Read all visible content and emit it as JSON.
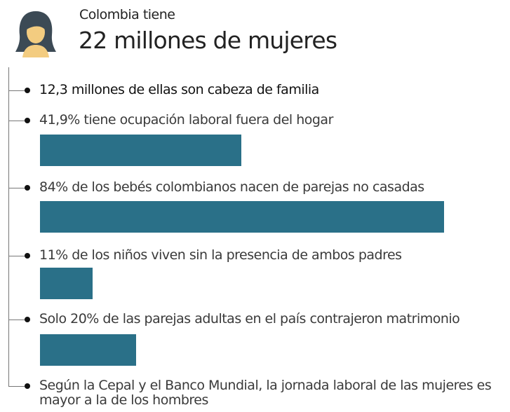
{
  "chart_data": {
    "type": "bar",
    "subtitle": "Colombia tiene",
    "title": "22 millones de mujeres",
    "categories": [
      "12,3 millones de ellas son cabeza de familia",
      "41,9% tiene ocupación laboral fuera del hogar",
      "84% de los bebés colombianos nacen de parejas no casadas",
      "11% de los niños viven sin la presencia de ambos padres",
      "Solo 20% de las parejas adultas en el país contrajeron matrimonio",
      "Según la Cepal y el Banco Mundial, la jornada laboral de las mujeres es mayor a la de los hombres"
    ],
    "values": [
      null,
      41.9,
      84,
      11,
      20,
      null
    ],
    "color": "#2a7088"
  }
}
